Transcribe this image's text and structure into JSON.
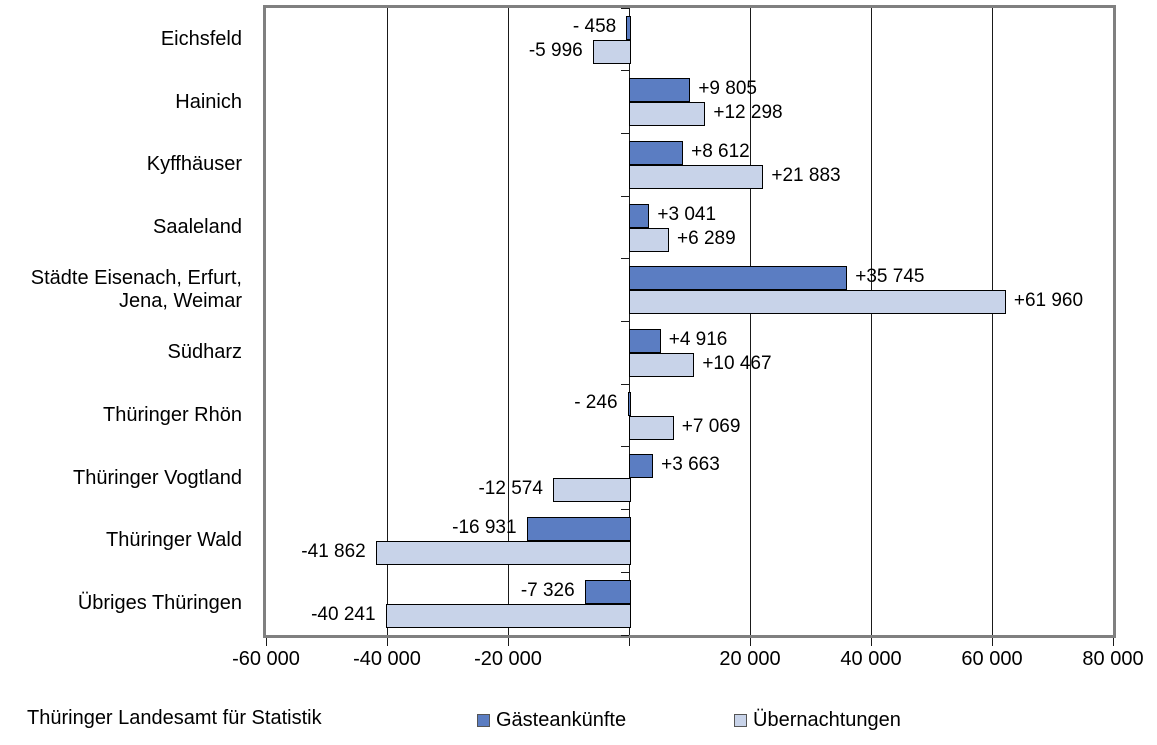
{
  "chart_data": {
    "type": "bar",
    "orientation": "horizontal",
    "title": "",
    "categories": [
      "Eichsfeld",
      "Hainich",
      "Kyffhäuser",
      "Saaleland",
      "Städte Eisenach, Erfurt, Jena, Weimar",
      "Südharz",
      "Thüringer Rhön",
      "Thüringer Vogtland",
      "Thüringer Wald",
      "Übriges Thüringen"
    ],
    "series": [
      {
        "name": "Gästeankünfte",
        "color": "#5b7dc2",
        "values": [
          -458,
          9805,
          8612,
          3041,
          35745,
          4916,
          -246,
          3663,
          -16931,
          -7326
        ],
        "labels": [
          "- 458",
          "+9 805",
          "+8 612",
          "+3 041",
          "+35 745",
          "+4 916",
          "- 246",
          "+3 663",
          "-16 931",
          "-7 326"
        ]
      },
      {
        "name": "Übernachtungen",
        "color": "#c8d3e9",
        "values": [
          -5996,
          12298,
          21883,
          6289,
          61960,
          10467,
          7069,
          -12574,
          -41862,
          -40241
        ],
        "labels": [
          "-5 996",
          "+12 298",
          "+21 883",
          "+6 289",
          "+61 960",
          "+10 467",
          "+7 069",
          "-12 574",
          "-41 862",
          "-40 241"
        ]
      }
    ],
    "x_axis": {
      "min": -60000,
      "max": 80000,
      "tick_interval": 20000,
      "tick_labels": [
        "-60 000",
        "-40 000",
        "-20 000",
        "",
        "20 000",
        "40 000",
        "60 000",
        "80 000"
      ]
    },
    "legend": {
      "position": "bottom",
      "entries": [
        "Gästeankünfte",
        "Übernachtungen"
      ]
    },
    "grid": "vertical",
    "source": "Thüringer Landesamt für Statistik"
  }
}
